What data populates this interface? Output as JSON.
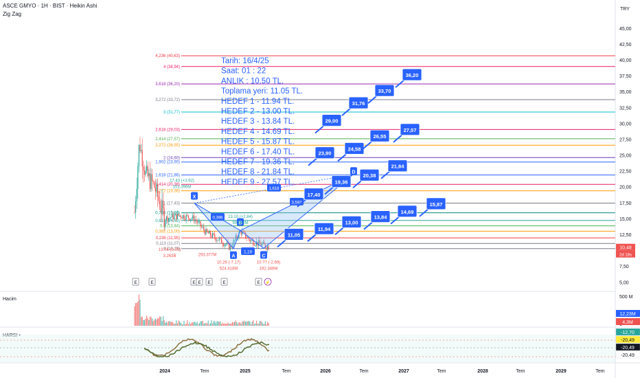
{
  "header": {
    "title": "ASCE GMYO · 1H · BIST · Heikin Ashi",
    "indicator": "Zig Zag"
  },
  "currency": "TRY",
  "colors": {
    "up": "#26a69a",
    "down": "#ef5350",
    "label_bg": "#2962ff",
    "note_text": "#2962ff",
    "pattern_fill": "#90bff9"
  },
  "price_axis": {
    "ticks": [
      "45,00",
      "42,50",
      "40,00",
      "37,50",
      "35,00",
      "32,50",
      "30,00",
      "27,50",
      "25,00",
      "22,50",
      "20,00",
      "17,50",
      "15,00",
      "12,50",
      "10,00",
      "7,50",
      "5,00"
    ],
    "last_price": "10,48",
    "last_countdown": "2d 18s"
  },
  "time_axis": {
    "ticks": [
      "2024",
      "Tem",
      "2025",
      "Tem",
      "2026",
      "Tem",
      "2027",
      "Tem",
      "2028",
      "Tem",
      "2029",
      "Tem"
    ]
  },
  "chart_data": {
    "type": "candlestick",
    "title": "ASCE GMYO · 1H · BIST · Heikin Ashi",
    "ylim": [
      4,
      47
    ],
    "fib_levels": [
      {
        "label": "4,236 (40,63)",
        "value": 40.63,
        "color": "#f23645"
      },
      {
        "label": "4 (38,94)",
        "value": 38.94,
        "color": "#e91e63"
      },
      {
        "label": "3,618 (36,20)",
        "value": 36.2,
        "color": "#9c27b0"
      },
      {
        "label": "3,272 (33,72)",
        "value": 33.72,
        "color": "#787b86"
      },
      {
        "label": "3 (31,77)",
        "value": 31.77,
        "color": "#00bcd4"
      },
      {
        "label": "2,618 (29,03)",
        "value": 29.03,
        "color": "#e91e63"
      },
      {
        "label": "2,414 (27,57)",
        "value": 27.57,
        "color": "#4caf50"
      },
      {
        "label": "2,272 (26,55)",
        "value": 26.55,
        "color": "#ff9800"
      },
      {
        "label": "2 (24,60)",
        "value": 24.6,
        "color": "#673ab7"
      },
      {
        "label": "1,902 (23,90)",
        "value": 23.9,
        "color": "#2962ff"
      },
      {
        "label": "1,618 (21,86)",
        "value": 21.86,
        "color": "#2962ff"
      },
      {
        "label": "1,414 (20,38)",
        "value": 20.38,
        "color": "#e91e63"
      },
      {
        "label": "1,272 (19,36)",
        "value": 19.36,
        "color": "#ff9800"
      },
      {
        "label": "1 (17,43)",
        "value": 17.43,
        "color": "#787b86"
      },
      {
        "label": "0,786 (15,90)",
        "value": 15.9,
        "color": "#00897b"
      },
      {
        "label": "0,618 (14,69)",
        "value": 14.69,
        "color": "#26a69a"
      },
      {
        "label": "0,5 (13,84)",
        "value": 13.84,
        "color": "#4caf50"
      },
      {
        "label": "0,382 (13,00)",
        "value": 13.0,
        "color": "#ff9800"
      },
      {
        "label": "0,236 (11,95)",
        "value": 11.95,
        "color": "#f23645"
      },
      {
        "label": "0,113 (11,07)",
        "value": 11.07,
        "color": "#787b86"
      },
      {
        "label": "0 (10,26)",
        "value": 10.26,
        "color": "#787b86"
      }
    ],
    "targets": [
      "11,05",
      "11,94",
      "13,00",
      "13,84",
      "14,69",
      "15,87",
      "17,40",
      "19,36",
      "20,38",
      "21,84",
      "23,90",
      "24,58",
      "26,55",
      "27,57",
      "29,00",
      "31,76",
      "33,70",
      "36,20"
    ],
    "pattern_points": [
      "X",
      "A",
      "B",
      "C",
      "D"
    ],
    "pattern_ratios": [
      "0,396",
      "1,19",
      "1,618",
      "3,592"
    ],
    "zigzag_labels": [
      {
        "price": "13.10 (+2.84)",
        "vol": "99.862M"
      },
      {
        "price": "10.26 (-7.17)",
        "vol": "524.418M"
      },
      {
        "price": "10.?? (-2.69)",
        "vol": "192.346M"
      },
      {
        "price": "13.04 (0.00)",
        "vol": "3.263B"
      },
      {
        "price": "17.43 (+3.92)",
        "vol": "151.396M"
      },
      {
        "price": "293.377M",
        "vol": ""
      }
    ],
    "event_markers": [
      "E",
      "E",
      "E",
      "E",
      "E",
      "E",
      "E"
    ]
  },
  "note": {
    "lines": [
      "Tarih:    16/4/25",
      "Saat:      01 : 22",
      "ANLIK :  10.50 TL.",
      "Toplama yeri: 11.05 TL.",
      "HEDEF 1 - 11.94 TL.",
      "HEDEF 2 - 13.00 TL.",
      "HEDEF 3 - 13.84 TL.",
      "HEDEF 4 - 14.69 TL.",
      "HEDEF 5 - 15.87 TL.",
      "HEDEF 6 - 17.40 TL.",
      "HEDEF 7 - 19.36 TL.",
      "HEDEF 8 - 21.84 TL.",
      "HEDEF 9 - 27.57 TL."
    ]
  },
  "volume_pane": {
    "title": "Hacim",
    "ticks": [
      "500 M",
      "0"
    ],
    "badge1": "12,23M",
    "badge2": "4,3M"
  },
  "harsi_pane": {
    "title": "HARSI •",
    "badges": [
      "-12,70",
      "-20,49",
      "-20,49",
      "-20,49"
    ]
  }
}
